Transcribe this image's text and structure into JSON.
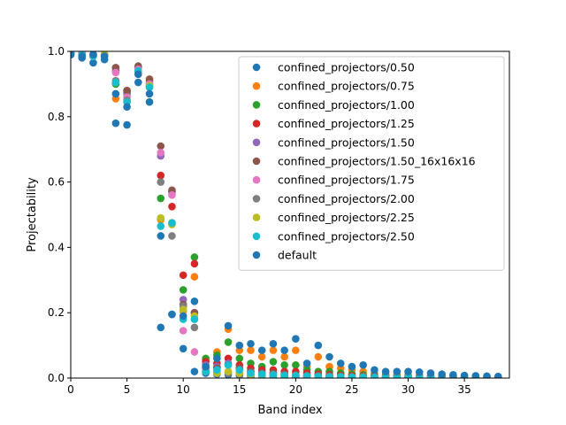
{
  "chart_data": {
    "type": "scatter",
    "xlabel": "Band index",
    "ylabel": "Projectability",
    "xlim": [
      0,
      39
    ],
    "ylim": [
      0,
      1
    ],
    "xticks": [
      0,
      5,
      10,
      15,
      20,
      25,
      30,
      35
    ],
    "yticks": [
      0.0,
      0.2,
      0.4,
      0.6,
      0.8,
      1.0
    ],
    "xtick_labels": [
      "0",
      "5",
      "10",
      "15",
      "20",
      "25",
      "30",
      "35"
    ],
    "ytick_labels": [
      "0.0",
      "0.2",
      "0.4",
      "0.6",
      "0.8",
      "1.0"
    ],
    "grid": false,
    "legend_position": "upper-right",
    "series": [
      {
        "name": "confined_projectors/0.50",
        "color": "#1f77b4",
        "x": [
          0,
          1,
          2,
          3,
          4,
          5,
          6,
          7,
          8,
          9,
          10,
          11,
          12,
          13,
          14,
          15,
          16,
          17,
          18,
          19,
          20,
          21,
          22,
          23,
          24,
          25,
          26,
          27,
          28,
          29,
          30,
          31,
          32,
          33,
          34,
          35,
          36,
          37,
          38
        ],
        "y": [
          0.99,
          0.98,
          0.965,
          0.975,
          0.78,
          0.775,
          0.905,
          0.845,
          0.155,
          0.195,
          0.09,
          0.02,
          0.015,
          0.012,
          0.01,
          0.008,
          0.006,
          0.006,
          0.005,
          0.005,
          0.004,
          0.004,
          0.004,
          0.003,
          0.003,
          0.003,
          0.003,
          0.002,
          0.002,
          0.002,
          0.002,
          0.002,
          0.002,
          0.002,
          0.001,
          0.001,
          0.001,
          0.001,
          0.001
        ]
      },
      {
        "name": "confined_projectors/0.75",
        "color": "#ff7f0e",
        "x": [
          0,
          1,
          2,
          3,
          4,
          5,
          6,
          7,
          8,
          9,
          10,
          11,
          12,
          13,
          14,
          15,
          16,
          17,
          18,
          19,
          20,
          21,
          22,
          23,
          24,
          25,
          26,
          27,
          28,
          29,
          30,
          31,
          32,
          33,
          34,
          35,
          36,
          37,
          38
        ],
        "y": [
          0.995,
          0.99,
          0.985,
          0.99,
          0.855,
          0.845,
          0.93,
          0.89,
          0.485,
          0.475,
          0.205,
          0.31,
          0.055,
          0.08,
          0.15,
          0.085,
          0.085,
          0.065,
          0.085,
          0.065,
          0.085,
          0.035,
          0.065,
          0.035,
          0.03,
          0.025,
          0.02,
          0.015,
          0.012,
          0.01,
          0.01,
          0.008,
          0.008,
          0.006,
          0.005,
          0.005,
          0.004,
          0.004,
          0.003
        ]
      },
      {
        "name": "confined_projectors/1.00",
        "color": "#2ca02c",
        "x": [
          0,
          1,
          2,
          3,
          4,
          5,
          6,
          7,
          8,
          9,
          10,
          11,
          12,
          13,
          14,
          15,
          16,
          17,
          18,
          19,
          20,
          21,
          22,
          23,
          24,
          25,
          26,
          27,
          28,
          29,
          30,
          31,
          32,
          33,
          34,
          35,
          36,
          37,
          38
        ],
        "y": [
          0.995,
          0.99,
          0.99,
          0.99,
          0.9,
          0.87,
          0.94,
          0.9,
          0.55,
          0.57,
          0.27,
          0.37,
          0.06,
          0.07,
          0.11,
          0.06,
          0.045,
          0.035,
          0.05,
          0.04,
          0.04,
          0.025,
          0.02,
          0.02,
          0.015,
          0.012,
          0.01,
          0.008,
          0.007,
          0.006,
          0.005,
          0.005,
          0.004,
          0.004,
          0.003,
          0.003,
          0.003,
          0.002,
          0.002
        ]
      },
      {
        "name": "confined_projectors/1.25",
        "color": "#d62728",
        "x": [
          0,
          1,
          2,
          3,
          4,
          5,
          6,
          7,
          8,
          9,
          10,
          11,
          12,
          13,
          14,
          15,
          16,
          17,
          18,
          19,
          20,
          21,
          22,
          23,
          24,
          25,
          26,
          27,
          28,
          29,
          30,
          31,
          32,
          33,
          34,
          35,
          36,
          37,
          38
        ],
        "y": [
          0.995,
          0.995,
          0.99,
          0.99,
          0.94,
          0.88,
          0.95,
          0.91,
          0.62,
          0.525,
          0.315,
          0.35,
          0.05,
          0.045,
          0.06,
          0.04,
          0.03,
          0.025,
          0.025,
          0.02,
          0.02,
          0.015,
          0.012,
          0.01,
          0.008,
          0.007,
          0.006,
          0.005,
          0.004,
          0.004,
          0.003,
          0.003,
          0.003,
          0.002,
          0.002,
          0.002,
          0.002,
          0.001,
          0.001
        ]
      },
      {
        "name": "confined_projectors/1.50",
        "color": "#9467bd",
        "x": [
          0,
          1,
          2,
          3,
          4,
          5,
          6,
          7,
          8,
          9,
          10,
          11,
          12,
          13,
          14,
          15,
          16,
          17,
          18,
          19,
          20,
          21,
          22,
          23,
          24,
          25,
          26,
          27,
          28,
          29,
          30,
          31,
          32,
          33,
          34,
          35,
          36,
          37,
          38
        ],
        "y": [
          0.995,
          0.995,
          0.99,
          0.99,
          0.95,
          0.875,
          0.95,
          0.91,
          0.68,
          0.57,
          0.24,
          0.2,
          0.04,
          0.035,
          0.045,
          0.03,
          0.02,
          0.015,
          0.015,
          0.012,
          0.01,
          0.008,
          0.007,
          0.006,
          0.005,
          0.004,
          0.004,
          0.003,
          0.003,
          0.002,
          0.002,
          0.002,
          0.002,
          0.001,
          0.001,
          0.001,
          0.001,
          0.001,
          0.001
        ]
      },
      {
        "name": "confined_projectors/1.50_16x16x16",
        "color": "#8c564b",
        "x": [
          0,
          1,
          2,
          3,
          4,
          5,
          6,
          7,
          8,
          9,
          10,
          11,
          12,
          13,
          14,
          15,
          16,
          17,
          18,
          19,
          20,
          21,
          22,
          23,
          24,
          25,
          26,
          27,
          28,
          29,
          30,
          31,
          32,
          33,
          34,
          35,
          36,
          37,
          38
        ],
        "y": [
          0.995,
          0.995,
          0.99,
          0.99,
          0.95,
          0.88,
          0.955,
          0.915,
          0.71,
          0.575,
          0.225,
          0.2,
          0.03,
          0.03,
          0.04,
          0.03,
          0.02,
          0.015,
          0.015,
          0.012,
          0.01,
          0.008,
          0.007,
          0.006,
          0.005,
          0.004,
          0.004,
          0.003,
          0.003,
          0.002,
          0.002,
          0.002,
          0.002,
          0.001,
          0.001,
          0.001,
          0.001,
          0.001,
          0.001
        ]
      },
      {
        "name": "confined_projectors/1.75",
        "color": "#e377c2",
        "x": [
          0,
          1,
          2,
          3,
          4,
          5,
          6,
          7,
          8,
          9,
          10,
          11,
          12,
          13,
          14,
          15,
          16,
          17,
          18,
          19,
          20,
          21,
          22,
          23,
          24,
          25,
          26,
          27,
          28,
          29,
          30,
          31,
          32,
          33,
          34,
          35,
          36,
          37,
          38
        ],
        "y": [
          0.995,
          0.995,
          0.99,
          0.99,
          0.935,
          0.86,
          0.945,
          0.9,
          0.69,
          0.56,
          0.145,
          0.08,
          0.025,
          0.02,
          0.02,
          0.015,
          0.012,
          0.01,
          0.01,
          0.008,
          0.007,
          0.006,
          0.005,
          0.004,
          0.004,
          0.003,
          0.003,
          0.002,
          0.002,
          0.002,
          0.002,
          0.001,
          0.001,
          0.001,
          0.001,
          0.001,
          0.001,
          0.001,
          0.001
        ]
      },
      {
        "name": "confined_projectors/2.00",
        "color": "#7f7f7f",
        "x": [
          0,
          1,
          2,
          3,
          4,
          5,
          6,
          7,
          8,
          9,
          10,
          11,
          12,
          13,
          14,
          15,
          16,
          17,
          18,
          19,
          20,
          21,
          22,
          23,
          24,
          25,
          26,
          27,
          28,
          29,
          30,
          31,
          32,
          33,
          34,
          35,
          36,
          37,
          38
        ],
        "y": [
          0.995,
          0.99,
          0.985,
          0.99,
          0.91,
          0.85,
          0.935,
          0.895,
          0.6,
          0.435,
          0.22,
          0.155,
          0.02,
          0.015,
          0.015,
          0.012,
          0.01,
          0.008,
          0.008,
          0.006,
          0.005,
          0.005,
          0.004,
          0.003,
          0.003,
          0.003,
          0.002,
          0.002,
          0.002,
          0.001,
          0.001,
          0.001,
          0.001,
          0.001,
          0.001,
          0.001,
          0.001,
          0.001,
          0.001
        ]
      },
      {
        "name": "confined_projectors/2.25",
        "color": "#bcbd22",
        "x": [
          0,
          1,
          2,
          3,
          4,
          5,
          6,
          7,
          8,
          9,
          10,
          11,
          12,
          13,
          14,
          15,
          16,
          17,
          18,
          19,
          20,
          21,
          22,
          23,
          24,
          25,
          26,
          27,
          28,
          29,
          30,
          31,
          32,
          33,
          34,
          35,
          36,
          37,
          38
        ],
        "y": [
          0.995,
          0.99,
          0.985,
          0.99,
          0.905,
          0.845,
          0.935,
          0.895,
          0.49,
          0.47,
          0.21,
          0.19,
          0.02,
          0.015,
          0.02,
          0.015,
          0.012,
          0.01,
          0.01,
          0.008,
          0.007,
          0.006,
          0.005,
          0.004,
          0.004,
          0.003,
          0.003,
          0.002,
          0.002,
          0.002,
          0.002,
          0.001,
          0.001,
          0.001,
          0.001,
          0.001,
          0.001,
          0.001,
          0.001
        ]
      },
      {
        "name": "confined_projectors/2.50",
        "color": "#17becf",
        "x": [
          0,
          1,
          2,
          3,
          4,
          5,
          6,
          7,
          8,
          9,
          10,
          11,
          12,
          13,
          14,
          15,
          16,
          17,
          18,
          19,
          20,
          21,
          22,
          23,
          24,
          25,
          26,
          27,
          28,
          29,
          30,
          31,
          32,
          33,
          34,
          35,
          36,
          37,
          38
        ],
        "y": [
          0.995,
          0.99,
          0.985,
          0.985,
          0.905,
          0.845,
          0.94,
          0.89,
          0.465,
          0.475,
          0.18,
          0.18,
          0.02,
          0.025,
          0.04,
          0.025,
          0.015,
          0.012,
          0.01,
          0.008,
          0.007,
          0.006,
          0.005,
          0.004,
          0.004,
          0.003,
          0.003,
          0.002,
          0.002,
          0.002,
          0.002,
          0.001,
          0.001,
          0.001,
          0.001,
          0.001,
          0.001,
          0.001,
          0.001
        ]
      },
      {
        "name": "default",
        "color": "#1f77b4",
        "x": [
          0,
          1,
          2,
          3,
          4,
          5,
          6,
          7,
          8,
          9,
          10,
          11,
          12,
          13,
          14,
          15,
          16,
          17,
          18,
          19,
          20,
          21,
          22,
          23,
          24,
          25,
          26,
          27,
          28,
          29,
          30,
          31,
          32,
          33,
          34,
          35,
          36,
          37,
          38
        ],
        "y": [
          0.99,
          0.985,
          0.99,
          0.985,
          0.87,
          0.83,
          0.93,
          0.87,
          0.435,
          0.195,
          0.19,
          0.235,
          0.035,
          0.06,
          0.16,
          0.1,
          0.105,
          0.085,
          0.105,
          0.085,
          0.12,
          0.045,
          0.1,
          0.065,
          0.045,
          0.035,
          0.04,
          0.025,
          0.02,
          0.02,
          0.02,
          0.018,
          0.015,
          0.012,
          0.01,
          0.008,
          0.007,
          0.006,
          0.005
        ]
      }
    ]
  }
}
